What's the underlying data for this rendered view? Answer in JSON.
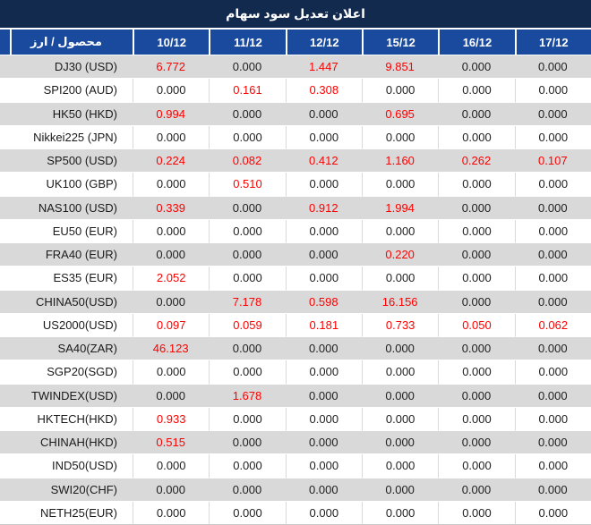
{
  "title": "اعلان تعديل سود سهام",
  "table": {
    "product_header": "محصول / ارز",
    "date_headers": [
      "10/12",
      "11/12",
      "12/12",
      "15/12",
      "16/12",
      "17/12"
    ],
    "rows": [
      {
        "product": "DJ30 (USD)",
        "values": [
          "6.772",
          "0.000",
          "1.447",
          "9.851",
          "0.000",
          "0.000"
        ]
      },
      {
        "product": "SPI200 (AUD)",
        "values": [
          "0.000",
          "0.161",
          "0.308",
          "0.000",
          "0.000",
          "0.000"
        ]
      },
      {
        "product": "HK50 (HKD)",
        "values": [
          "0.994",
          "0.000",
          "0.000",
          "0.695",
          "0.000",
          "0.000"
        ]
      },
      {
        "product": "Nikkei225 (JPN)",
        "values": [
          "0.000",
          "0.000",
          "0.000",
          "0.000",
          "0.000",
          "0.000"
        ]
      },
      {
        "product": "SP500 (USD)",
        "values": [
          "0.224",
          "0.082",
          "0.412",
          "1.160",
          "0.262",
          "0.107"
        ]
      },
      {
        "product": "UK100 (GBP)",
        "values": [
          "0.000",
          "0.510",
          "0.000",
          "0.000",
          "0.000",
          "0.000"
        ]
      },
      {
        "product": "NAS100 (USD)",
        "values": [
          "0.339",
          "0.000",
          "0.912",
          "1.994",
          "0.000",
          "0.000"
        ]
      },
      {
        "product": "EU50 (EUR)",
        "values": [
          "0.000",
          "0.000",
          "0.000",
          "0.000",
          "0.000",
          "0.000"
        ]
      },
      {
        "product": "FRA40 (EUR)",
        "values": [
          "0.000",
          "0.000",
          "0.000",
          "0.220",
          "0.000",
          "0.000"
        ]
      },
      {
        "product": "ES35 (EUR)",
        "values": [
          "2.052",
          "0.000",
          "0.000",
          "0.000",
          "0.000",
          "0.000"
        ]
      },
      {
        "product": "CHINA50(USD)",
        "values": [
          "0.000",
          "7.178",
          "0.598",
          "16.156",
          "0.000",
          "0.000"
        ]
      },
      {
        "product": "US2000(USD)",
        "values": [
          "0.097",
          "0.059",
          "0.181",
          "0.733",
          "0.050",
          "0.062"
        ]
      },
      {
        "product": "SA40(ZAR)",
        "values": [
          "46.123",
          "0.000",
          "0.000",
          "0.000",
          "0.000",
          "0.000"
        ]
      },
      {
        "product": "SGP20(SGD)",
        "values": [
          "0.000",
          "0.000",
          "0.000",
          "0.000",
          "0.000",
          "0.000"
        ]
      },
      {
        "product": "TWINDEX(USD)",
        "values": [
          "0.000",
          "1.678",
          "0.000",
          "0.000",
          "0.000",
          "0.000"
        ]
      },
      {
        "product": "HKTECH(HKD)",
        "values": [
          "0.933",
          "0.000",
          "0.000",
          "0.000",
          "0.000",
          "0.000"
        ]
      },
      {
        "product": "CHINAH(HKD)",
        "values": [
          "0.515",
          "0.000",
          "0.000",
          "0.000",
          "0.000",
          "0.000"
        ]
      },
      {
        "product": "IND50(USD)",
        "values": [
          "0.000",
          "0.000",
          "0.000",
          "0.000",
          "0.000",
          "0.000"
        ]
      },
      {
        "product": "SWI20(CHF)",
        "values": [
          "0.000",
          "0.000",
          "0.000",
          "0.000",
          "0.000",
          "0.000"
        ]
      },
      {
        "product": "NETH25(EUR)",
        "values": [
          "0.000",
          "0.000",
          "0.000",
          "0.000",
          "0.000",
          "0.000"
        ]
      }
    ]
  },
  "colors": {
    "title_bg": "#122A4D",
    "header_bg": "#1A4A9E",
    "stripe_row_bg": "#D9D9D9",
    "plain_row_bg": "#FFFFFF",
    "nonzero_value_text": "#FF0000",
    "zero_value_text": "#212121",
    "header_text": "#FFFFFF"
  }
}
